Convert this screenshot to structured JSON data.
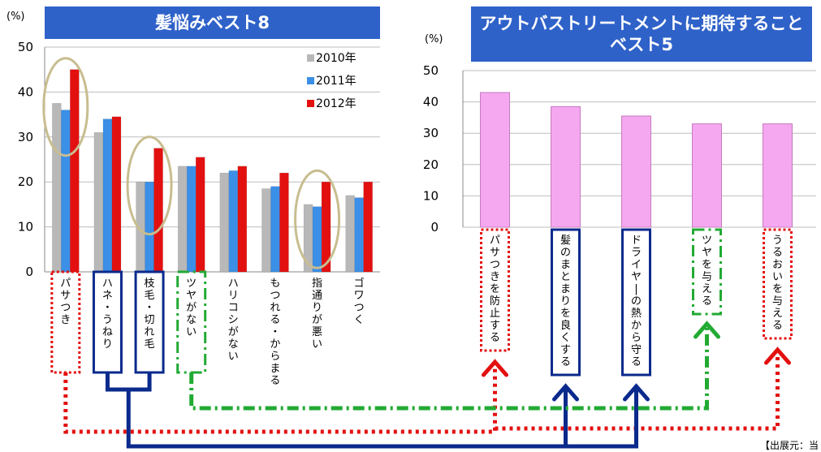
{
  "source_note": "【出展元：当",
  "chart_data": [
    {
      "type": "bar",
      "title": "髪悩みベスト8",
      "ylabel": "(%)",
      "ylim": [
        0,
        50
      ],
      "yticks": [
        0,
        10,
        20,
        30,
        40,
        50
      ],
      "grid": true,
      "legend_position": "top-right",
      "categories": [
        "パサつき",
        "ハネ・うねり",
        "枝毛・切れ毛",
        "ツヤがない",
        "ハリコシがない",
        "もつれる・からまる",
        "指通りが悪い",
        "ゴワつく"
      ],
      "series": [
        {
          "name": "2010年",
          "color": "#b8b8b8",
          "values": [
            37.5,
            31,
            20,
            23.5,
            22,
            18.5,
            15,
            17
          ]
        },
        {
          "name": "2011年",
          "color": "#3b8fe6",
          "values": [
            36,
            34,
            20,
            23.5,
            22.5,
            19,
            14.5,
            16.5
          ]
        },
        {
          "name": "2012年",
          "color": "#e31010",
          "values": [
            45,
            34.5,
            27.5,
            25.5,
            23.5,
            22,
            20,
            20
          ]
        }
      ],
      "highlighted_categories": [
        "パサつき",
        "枝毛・切れ毛",
        "指通りが悪い"
      ]
    },
    {
      "type": "bar",
      "title": "アウトバストリートメントに期待すること ベスト5",
      "ylabel": "(%)",
      "ylim": [
        0,
        50
      ],
      "yticks": [
        0,
        10,
        20,
        30,
        40,
        50
      ],
      "grid": true,
      "categories": [
        "パサつきを防止する",
        "髪のまとまりを良くする",
        "ドライヤーの熱から守る",
        "ツヤを与える",
        "うるおいを与える"
      ],
      "series": [
        {
          "color": "#f5a8f0",
          "values": [
            43,
            38.5,
            35.5,
            33,
            33
          ]
        }
      ]
    }
  ],
  "links": [
    {
      "from": "パサつき",
      "to": "パサつきを防止する",
      "style": "dotted",
      "color": "#e31010"
    },
    {
      "from": "ハネ・うねり",
      "to": "髪のまとまりを良くする",
      "style": "solid",
      "color": "#0a2a8c"
    },
    {
      "from": "枝毛・切れ毛",
      "to": "ドライヤーの熱から守る",
      "style": "solid",
      "color": "#0a2a8c"
    },
    {
      "from": "ツヤがない",
      "to": "ツヤを与える",
      "style": "dash-dot",
      "color": "#22aa33"
    },
    {
      "from": "パサつき",
      "to": "うるおいを与える",
      "style": "dotted",
      "color": "#e31010"
    }
  ]
}
